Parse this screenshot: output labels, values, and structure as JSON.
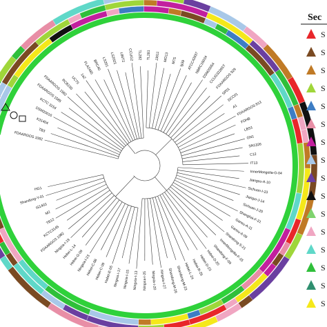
{
  "figure": {
    "leaves": [
      "FDAARGOS 1082",
      "TB3",
      "K31404",
      "DSM20016",
      "KCTC 3154",
      "FDAARGOS 1585",
      "FDAARGOS 1582",
      "RCB150",
      "UC75",
      "1a2",
      "FLA2485",
      "BRC40",
      "LS201",
      "LS2021",
      "L86T2",
      "CCUG2",
      "TL282",
      "TL281",
      "JJ611",
      "MO13",
      "M75",
      "lg39",
      "ATCC42837",
      "NBRC16034",
      "DSM20054",
      "CCUG3226ST",
      "FDAARGOS 929",
      "SP01",
      "DCC01",
      "A1",
      "FDAARGOS 813",
      "FDHB",
      "LBS1",
      "GN1",
      "SN1326",
      "C12",
      "IT13",
      "InnerMongolia-G-04",
      "Jiangsu-A-10",
      "Sichuan-I-23",
      "Jiangxi-J-14",
      "Sichuan-J-20",
      "Shanghai-F-21",
      "Gansu-A-11",
      "Gansu-A-09",
      "Shandong-S-21",
      "InnerMongolia-F-15",
      "Shandong-F-09",
      "Hebei-D-20",
      "Hebei-D-23",
      "Hebei-R-26",
      "Hebei-L-24",
      "Shandong-M-23",
      "Shandong-M-26",
      "Ningxia-I-27",
      "Ningxia-I-20",
      "Ningxia-I-25",
      "Ningxia-I-13",
      "Ningxia-I-15",
      "Ningxia-I-17",
      "Hebei-E-05",
      "Hebei-C-09",
      "Hebei-C-08",
      "Ningxia-I-23",
      "Hebei-G-09",
      "Hebei-L-14",
      "Ningxia-I-19",
      "FDAARGOS 1092",
      "KCTC3145",
      "TB12",
      "M2",
      "IS1403",
      "Shandong-Y-01",
      "HG1"
    ],
    "legend": {
      "title": "Sec",
      "items": [
        {
          "label": "S",
          "color": "#e8262a"
        },
        {
          "label": "S",
          "color": "#7a4a22"
        },
        {
          "label": "S",
          "color": "#c07a26"
        },
        {
          "label": "S",
          "color": "#9fd63a"
        },
        {
          "label": "S",
          "color": "#3d7dc4"
        },
        {
          "label": "S",
          "color": "#e88ea6"
        },
        {
          "label": "S",
          "color": "#c21f9e"
        },
        {
          "label": "S",
          "color": "#a8c8e8"
        },
        {
          "label": "S",
          "color": "#6a3fa0"
        },
        {
          "label": "S",
          "color": "#111111"
        },
        {
          "label": "S",
          "color": "#7fd36e"
        },
        {
          "label": "S",
          "color": "#f0a6c2"
        },
        {
          "label": "S",
          "color": "#5fd8c8"
        },
        {
          "label": "S",
          "color": "#2fbf3a"
        },
        {
          "label": "S",
          "color": "#2f8f6f"
        },
        {
          "label": "S",
          "color": "#f5e81a"
        }
      ]
    },
    "ring_colors": {
      "base": "#2fd13a",
      "outer_palette": [
        "#e8262a",
        "#f5e81a",
        "#3d7dc4",
        "#c21f9e",
        "#7a4a22",
        "#9fd63a",
        "#e88ea6",
        "#111111",
        "#5fd8c8",
        "#6a3fa0",
        "#c07a26",
        "#2fbf3a",
        "#a8c8e8",
        "#f0a6c2"
      ]
    }
  }
}
